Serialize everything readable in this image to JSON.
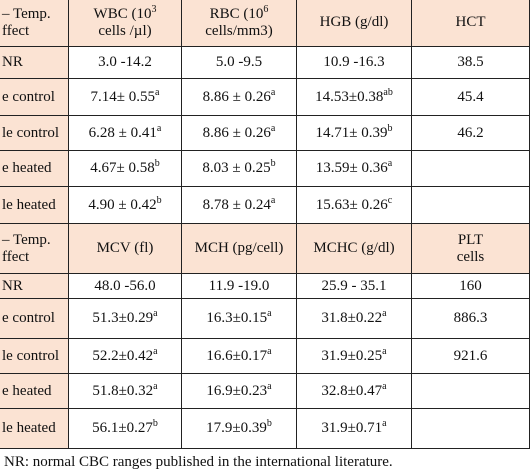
{
  "tables": [
    {
      "header": [
        [
          {
            "text": "– Temp."
          },
          {
            "text": "ffect"
          }
        ],
        [
          {
            "text": "WBC (10",
            "sup": "3"
          },
          {
            "text": "cells /µl)"
          }
        ],
        [
          {
            "text": "RBC (10",
            "sup": "6"
          },
          {
            "text": "cells/mm3)"
          }
        ],
        [
          {
            "text": "HGB (g/dl)"
          }
        ],
        [
          {
            "text": "HCT"
          }
        ]
      ],
      "rows": [
        [
          {
            "text": "NR"
          },
          {
            "text": "3.0 -14.2"
          },
          {
            "text": "5.0 -9.5"
          },
          {
            "text": "10.9 -16.3"
          },
          {
            "text": "38.5"
          }
        ],
        [
          {
            "text": "e control"
          },
          {
            "text": "7.14± 0.55",
            "sup": "a"
          },
          {
            "text": "8.86 ± 0.26",
            "sup": "a"
          },
          {
            "text": "14.53±0.38",
            "sup": "ab"
          },
          {
            "text": "45.4"
          }
        ],
        [
          {
            "text": "le control"
          },
          {
            "text": "6.28 ± 0.41",
            "sup": "a"
          },
          {
            "text": "8.86 ± 0.26",
            "sup": "a"
          },
          {
            "text": "14.71± 0.39",
            "sup": "b"
          },
          {
            "text": "46.2"
          }
        ],
        [
          {
            "text": "e heated"
          },
          {
            "text": "4.67± 0.58",
            "sup": "b"
          },
          {
            "text": "8.03 ± 0.25",
            "sup": "b"
          },
          {
            "text": "13.59± 0.36",
            "sup": "a"
          }
        ],
        [
          {
            "text": "le heated"
          },
          {
            "text": "4.90 ± 0.42",
            "sup": "b"
          },
          {
            "text": "8.78 ± 0.24",
            "sup": "a"
          },
          {
            "text": "15.63± 0.26",
            "sup": "c"
          }
        ]
      ]
    },
    {
      "header": [
        [
          {
            "text": "– Temp."
          },
          {
            "text": "ffect"
          }
        ],
        [
          {
            "text": "MCV (fl)"
          }
        ],
        [
          {
            "text": "MCH (pg/cell)"
          }
        ],
        [
          {
            "text": "MCHC (g/dl)"
          }
        ],
        [
          {
            "text": "PLT"
          },
          {
            "text": "cells"
          }
        ]
      ],
      "rows": [
        [
          {
            "text": "NR"
          },
          {
            "text": "48.0 -56.0"
          },
          {
            "text": "11.9 -19.0"
          },
          {
            "text": "25.9 - 35.1"
          },
          {
            "text": "160"
          }
        ],
        [
          {
            "text": "e control"
          },
          {
            "text": "51.3±0.29",
            "sup": "a"
          },
          {
            "text": "16.3±0.15",
            "sup": "a"
          },
          {
            "text": "31.8±0.22",
            "sup": "a"
          },
          {
            "text": "886.3"
          }
        ],
        [
          {
            "text": "le control"
          },
          {
            "text": "52.2±0.42",
            "sup": "a"
          },
          {
            "text": "16.6±0.17",
            "sup": "a"
          },
          {
            "text": "31.9±0.25",
            "sup": "a"
          },
          {
            "text": "921.6"
          }
        ],
        [
          {
            "text": "e heated"
          },
          {
            "text": "51.8±0.32",
            "sup": "a"
          },
          {
            "text": "16.9±0.23",
            "sup": "a"
          },
          {
            "text": "32.8±0.47",
            "sup": "a"
          }
        ],
        [
          {
            "text": "le heated"
          },
          {
            "text": "56.1±0.27",
            "sup": "b"
          },
          {
            "text": "17.9±0.39",
            "sup": "b"
          },
          {
            "text": "31.9±0.71",
            "sup": "a"
          }
        ]
      ]
    }
  ],
  "footnote": "NR: normal CBC ranges published in the international literature."
}
